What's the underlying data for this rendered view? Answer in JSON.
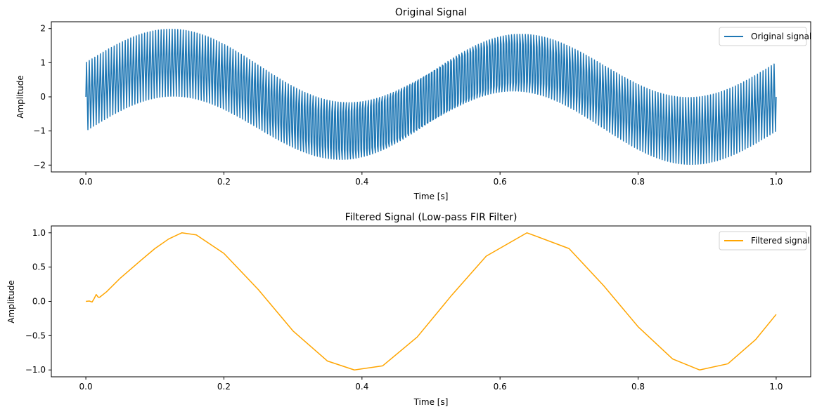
{
  "chart_data": [
    {
      "type": "line",
      "title": "Original Signal",
      "xlabel": "Time [s]",
      "ylabel": "Amplitude",
      "xlim": [
        -0.05,
        1.05
      ],
      "ylim": [
        -2.2,
        2.2
      ],
      "xticks": [
        0.0,
        0.2,
        0.4,
        0.6,
        0.8,
        1.0
      ],
      "xtick_labels": [
        "0.0",
        "0.2",
        "0.4",
        "0.6",
        "0.8",
        "1.0"
      ],
      "yticks": [
        -2,
        -1,
        0,
        1,
        2
      ],
      "ytick_labels": [
        "−2",
        "−1",
        "0",
        "1",
        "2"
      ],
      "legend_position": "top-right",
      "series": [
        {
          "name": "Original signal",
          "color": "#1f77b4",
          "formula": "sin(2*pi*2*t) + sin(2*pi*250*t)",
          "x_range": [
            0,
            1
          ],
          "samples": 1000,
          "values_sample": {
            "t": [
              0.0,
              0.125,
              0.375,
              0.625,
              0.875,
              1.0
            ],
            "envelope_center": [
              0,
              1,
              -1,
              1,
              -1,
              0
            ],
            "envelope_max": [
              1,
              2,
              0,
              2,
              0,
              1
            ],
            "envelope_min": [
              -1,
              0,
              -2,
              0,
              -2,
              -1
            ]
          }
        }
      ]
    },
    {
      "type": "line",
      "title": "Filtered Signal (Low-pass FIR Filter)",
      "xlabel": "Time [s]",
      "ylabel": "Amplitude",
      "xlim": [
        -0.05,
        1.05
      ],
      "ylim": [
        -1.1,
        1.1
      ],
      "xticks": [
        0.0,
        0.2,
        0.4,
        0.6,
        0.8,
        1.0
      ],
      "xtick_labels": [
        "0.0",
        "0.2",
        "0.4",
        "0.6",
        "0.8",
        "1.0"
      ],
      "yticks": [
        -1.0,
        -0.5,
        0.0,
        0.5,
        1.0
      ],
      "ytick_labels": [
        "−1.0",
        "−0.5",
        "0.0",
        "0.5",
        "1.0"
      ],
      "legend_position": "top-right",
      "series": [
        {
          "name": "Filtered signal",
          "color": "#ffa500",
          "x": [
            0.0,
            0.005,
            0.009,
            0.012,
            0.015,
            0.018,
            0.02,
            0.03,
            0.05,
            0.08,
            0.1,
            0.12,
            0.139,
            0.16,
            0.2,
            0.25,
            0.3,
            0.35,
            0.389,
            0.43,
            0.48,
            0.53,
            0.58,
            0.639,
            0.7,
            0.75,
            0.8,
            0.85,
            0.889,
            0.93,
            0.97,
            1.0
          ],
          "y": [
            0.0,
            0.005,
            -0.01,
            0.04,
            0.1,
            0.06,
            0.06,
            0.14,
            0.34,
            0.6,
            0.77,
            0.91,
            1.0,
            0.97,
            0.7,
            0.17,
            -0.43,
            -0.87,
            -1.0,
            -0.94,
            -0.52,
            0.09,
            0.66,
            1.0,
            0.77,
            0.23,
            -0.37,
            -0.84,
            -1.0,
            -0.91,
            -0.56,
            -0.19
          ]
        }
      ]
    }
  ]
}
